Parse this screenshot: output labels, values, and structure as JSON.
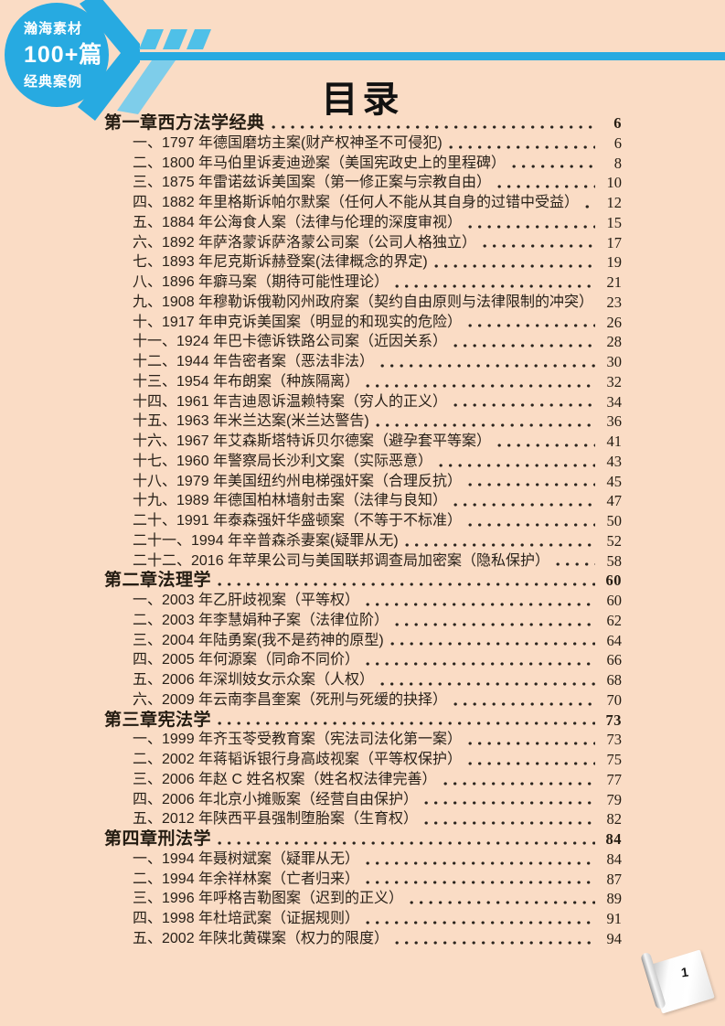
{
  "badge": {
    "line1": "瀚海素材",
    "line2": "100+篇",
    "line3": "经典案例"
  },
  "title": "目录",
  "page_corner": {
    "page_number": "1"
  },
  "colors": {
    "background": "#fadcc5",
    "brand_blue": "#27aae1",
    "stripe_blue": "#4fc0e8",
    "light_blue": "#7ecdea",
    "text": "#282018"
  },
  "toc": {
    "chapters": [
      {
        "title": "第一章西方法学经典",
        "page": "6",
        "items": [
          {
            "label": "一、1797 年德国磨坊主案(财产权神圣不可侵犯)",
            "page": "6"
          },
          {
            "label": "二、1800 年马伯里诉麦迪逊案（美国宪政史上的里程碑）",
            "page": "8"
          },
          {
            "label": "三、1875 年雷诺兹诉美国案（第一修正案与宗教自由）",
            "page": "10"
          },
          {
            "label": "四、1882 年里格斯诉帕尔默案（任何人不能从其自身的过错中受益）",
            "page": "12"
          },
          {
            "label": "五、1884 年公海食人案（法律与伦理的深度审视）",
            "page": "15"
          },
          {
            "label": "六、1892 年萨洛蒙诉萨洛蒙公司案（公司人格独立）",
            "page": "17"
          },
          {
            "label": "七、1893 年尼克斯诉赫登案(法律概念的界定)",
            "page": "19"
          },
          {
            "label": "八、1896 年癖马案（期待可能性理论）",
            "page": "21"
          },
          {
            "label": "九、1908 年穆勒诉俄勒冈州政府案（契约自由原则与法律限制的冲突）",
            "page": "23"
          },
          {
            "label": "十、1917 年申克诉美国案（明显的和现实的危险）",
            "page": "26"
          },
          {
            "label": "十一、1924 年巴卡德诉铁路公司案（近因关系）",
            "page": "28"
          },
          {
            "label": "十二、1944 年告密者案（恶法非法）",
            "page": "30"
          },
          {
            "label": "十三、1954 年布朗案（种族隔离）",
            "page": "32"
          },
          {
            "label": "十四、1961 年吉迪恩诉温赖特案（穷人的正义）",
            "page": "34"
          },
          {
            "label": "十五、1963 年米兰达案(米兰达警告)",
            "page": "36"
          },
          {
            "label": "十六、1967 年艾森斯塔特诉贝尔德案（避孕套平等案）",
            "page": "41"
          },
          {
            "label": "十七、1960 年警察局长沙利文案（实际恶意）",
            "page": "43"
          },
          {
            "label": "十八、1979 年美国纽约州电梯强奸案（合理反抗）",
            "page": "45"
          },
          {
            "label": "十九、1989 年德国柏林墙射击案（法律与良知）",
            "page": "47"
          },
          {
            "label": "二十、1991 年泰森强奸华盛顿案（不等于不标准）",
            "page": "50"
          },
          {
            "label": "二十一、1994 年辛普森杀妻案(疑罪从无)",
            "page": "52"
          },
          {
            "label": "二十二、2016 年苹果公司与美国联邦调查局加密案（隐私保护）",
            "page": "58"
          }
        ]
      },
      {
        "title": "第二章法理学",
        "page": "60",
        "items": [
          {
            "label": "一、2003 年乙肝歧视案（平等权）",
            "page": "60"
          },
          {
            "label": "二、2003 年李慧娟种子案（法律位阶）",
            "page": "62"
          },
          {
            "label": "三、2004 年陆勇案(我不是药神的原型)",
            "page": "64"
          },
          {
            "label": "四、2005 年何源案（同命不同价）",
            "page": "66"
          },
          {
            "label": "五、2006 年深圳妓女示众案（人权）",
            "page": "68"
          },
          {
            "label": "六、2009 年云南李昌奎案（死刑与死缓的抉择）",
            "page": "70"
          }
        ]
      },
      {
        "title": "第三章宪法学",
        "page": "73",
        "items": [
          {
            "label": "一、1999 年齐玉苓受教育案（宪法司法化第一案）",
            "page": "73"
          },
          {
            "label": "二、2002 年蒋韬诉银行身高歧视案（平等权保护）",
            "page": "75"
          },
          {
            "label": "三、2006 年赵 C 姓名权案（姓名权法律完善）",
            "page": "77"
          },
          {
            "label": "四、2006 年北京小摊贩案（经营自由保护）",
            "page": "79"
          },
          {
            "label": "五、2012 年陕西平县强制堕胎案（生育权）",
            "page": "82"
          }
        ]
      },
      {
        "title": "第四章刑法学",
        "page": "84",
        "items": [
          {
            "label": "一、1994 年聂树斌案（疑罪从无）",
            "page": "84"
          },
          {
            "label": "二、1994 年余祥林案（亡者归来）",
            "page": "87"
          },
          {
            "label": "三、1996 年呼格吉勒图案（迟到的正义）",
            "page": "89"
          },
          {
            "label": "四、1998 年杜培武案（证据规则）",
            "page": "91"
          },
          {
            "label": "五、2002 年陕北黄碟案（权力的限度）",
            "page": "94"
          }
        ]
      }
    ]
  }
}
